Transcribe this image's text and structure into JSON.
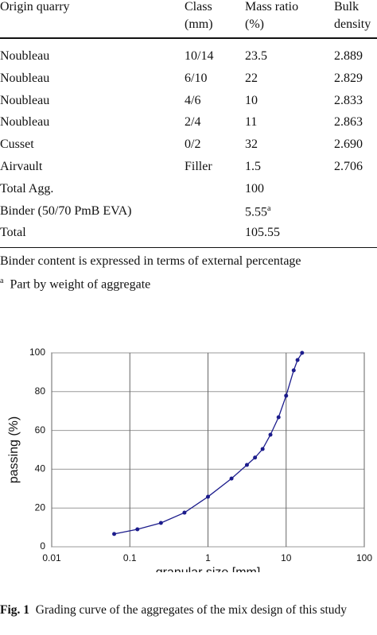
{
  "table": {
    "columns": [
      [
        "Origin quarry"
      ],
      [
        "Class",
        "(mm)"
      ],
      [
        "Mass ratio",
        "(%)"
      ],
      [
        "Bulk",
        "density"
      ]
    ],
    "rows": [
      [
        "Noubleau",
        "10/14",
        "23.5",
        "2.889"
      ],
      [
        "Noubleau",
        "6/10",
        "22",
        "2.829"
      ],
      [
        "Noubleau",
        "4/6",
        "10",
        "2.833"
      ],
      [
        "Noubleau",
        "2/4",
        "11",
        "2.863"
      ],
      [
        "Cusset",
        "0/2",
        "32",
        "2.690"
      ],
      [
        "Airvault",
        "Filler",
        "1.5",
        "2.706"
      ],
      [
        "Total Agg.",
        null,
        "100",
        null
      ],
      [
        "Binder (50/70 PmB EVA)",
        null,
        {
          "text": "5.55",
          "note": "a"
        },
        null
      ],
      [
        "Total",
        null,
        "105.55",
        null
      ]
    ]
  },
  "notes": {
    "text": "Binder content is expressed in terms of external percentage",
    "footnote": {
      "mark": "a",
      "text": "Part by weight of aggregate"
    }
  },
  "chart_data": {
    "type": "line",
    "x_label": "granular size [mm]",
    "y_label": "passing (%)",
    "xlim": [
      0.01,
      100
    ],
    "xticks": [
      0.01,
      0.1,
      1,
      10,
      100
    ],
    "xscale": "log",
    "ylim": [
      0,
      100
    ],
    "yticks": [
      0,
      20,
      40,
      60,
      80,
      100
    ],
    "grid": true,
    "series": [
      {
        "color": "#1c1c8c",
        "x": [
          0.063,
          0.125,
          0.25,
          0.5,
          1,
          2,
          3.15,
          4,
          5,
          6.3,
          8,
          10,
          12.5,
          14,
          16
        ],
        "values": [
          6.6,
          9,
          12.3,
          17.6,
          25.8,
          35.2,
          42.2,
          46,
          50.4,
          57.8,
          66.8,
          77.9,
          91,
          96.3,
          100
        ]
      }
    ]
  },
  "caption": {
    "label": "Fig. 1",
    "text": "Grading curve of the aggregates of the mix design of this study"
  }
}
